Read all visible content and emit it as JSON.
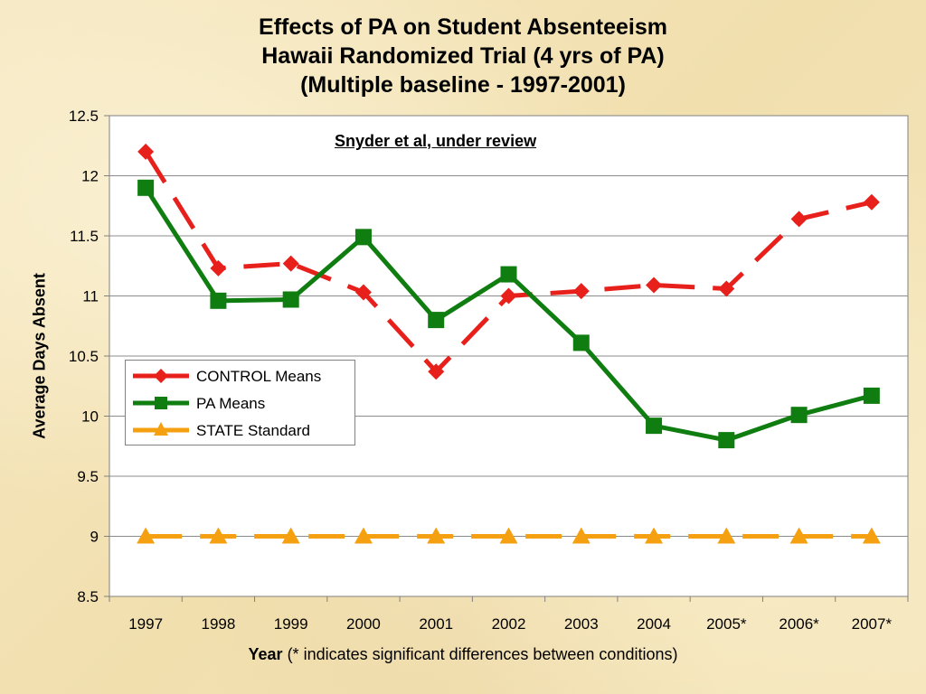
{
  "title_lines": [
    "Effects of PA on Student Absenteeism",
    "Hawaii Randomized Trial (4 yrs of PA)",
    "(Multiple baseline - 1997-2001)"
  ],
  "annotation": "Snyder et al, under review",
  "xlabel_bold": "Year",
  "xlabel_rest": " (* indicates significant differences between conditions)",
  "ylabel": "Average Days Absent",
  "colors": {
    "control": "#e8201c",
    "pa": "#0f7d0f",
    "state": "#f5a010"
  },
  "chart_data": {
    "type": "line",
    "categories": [
      "1997",
      "1998",
      "1999",
      "2000",
      "2001",
      "2002",
      "2003",
      "2004",
      "2005*",
      "2006*",
      "2007*"
    ],
    "ylim": [
      8.5,
      12.5
    ],
    "yticks": [
      "8.5",
      "9",
      "9.5",
      "10",
      "10.5",
      "11",
      "11.5",
      "12",
      "12.5"
    ],
    "grid": true,
    "legend_position": "left-middle",
    "series": [
      {
        "name": "CONTROL Means",
        "key": "control",
        "style": "dashed",
        "marker": "diamond",
        "values": [
          12.2,
          11.23,
          11.27,
          11.03,
          10.37,
          11.0,
          11.04,
          11.09,
          11.06,
          11.64,
          11.78
        ]
      },
      {
        "name": "PA Means",
        "key": "pa",
        "style": "solid",
        "marker": "square",
        "values": [
          11.9,
          10.96,
          10.97,
          11.49,
          10.8,
          11.18,
          10.61,
          9.92,
          9.8,
          10.01,
          10.17
        ]
      },
      {
        "name": "STATE Standard",
        "key": "state",
        "style": "dashed",
        "marker": "triangle",
        "values": [
          9.0,
          9.0,
          9.0,
          9.0,
          9.0,
          9.0,
          9.0,
          9.0,
          9.0,
          9.0,
          9.0
        ]
      }
    ]
  }
}
